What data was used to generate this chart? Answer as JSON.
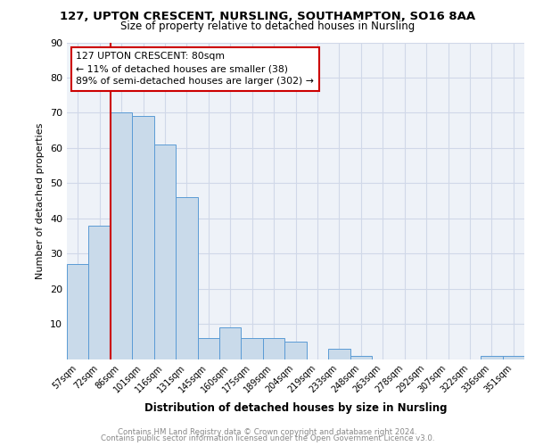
{
  "title1": "127, UPTON CRESCENT, NURSLING, SOUTHAMPTON, SO16 8AA",
  "title2": "Size of property relative to detached houses in Nursling",
  "xlabel": "Distribution of detached houses by size in Nursling",
  "ylabel": "Number of detached properties",
  "categories": [
    "57sqm",
    "72sqm",
    "86sqm",
    "101sqm",
    "116sqm",
    "131sqm",
    "145sqm",
    "160sqm",
    "175sqm",
    "189sqm",
    "204sqm",
    "219sqm",
    "233sqm",
    "248sqm",
    "263sqm",
    "278sqm",
    "292sqm",
    "307sqm",
    "322sqm",
    "336sqm",
    "351sqm"
  ],
  "values": [
    27,
    38,
    70,
    69,
    61,
    46,
    6,
    9,
    6,
    6,
    5,
    0,
    3,
    1,
    0,
    0,
    0,
    0,
    0,
    1,
    1
  ],
  "bar_color": "#c9daea",
  "bar_edge_color": "#5b9bd5",
  "annotation_line1": "127 UPTON CRESCENT: 80sqm",
  "annotation_line2": "← 11% of detached houses are smaller (38)",
  "annotation_line3": "89% of semi-detached houses are larger (302) →",
  "annotation_box_color": "#ffffff",
  "annotation_box_edge": "#cc0000",
  "ref_line_color": "#cc0000",
  "grid_color": "#d0d8e8",
  "background_color": "#eef2f8",
  "footer_line1": "Contains HM Land Registry data © Crown copyright and database right 2024.",
  "footer_line2": "Contains public sector information licensed under the Open Government Licence v3.0.",
  "ylim": [
    0,
    90
  ],
  "yticks": [
    0,
    10,
    20,
    30,
    40,
    50,
    60,
    70,
    80,
    90
  ]
}
